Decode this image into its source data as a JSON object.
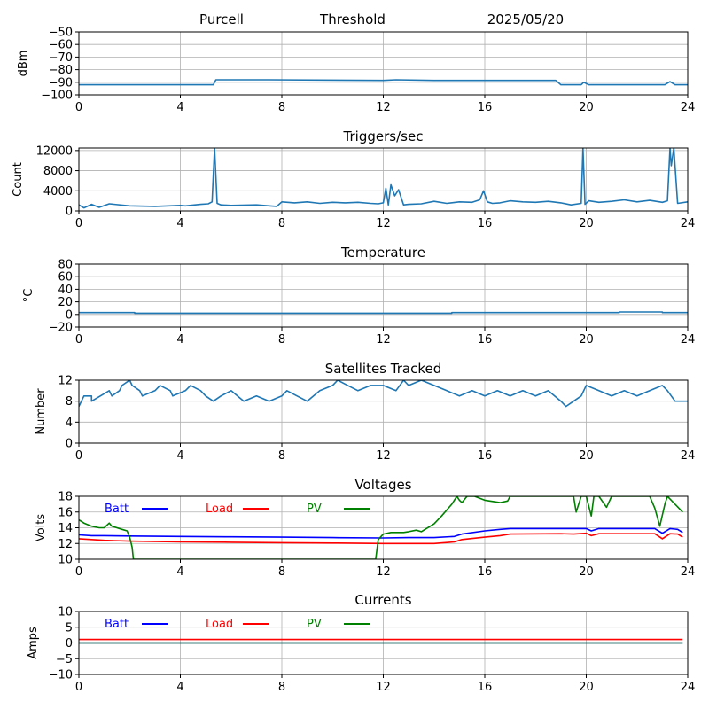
{
  "header": {
    "station": "Purcell",
    "mode": "Threshold",
    "date": "2025/05/20"
  },
  "colors": {
    "series": "#1f77b4",
    "batt": "#0000ff",
    "load": "#ff0000",
    "pv": "#008000",
    "grid": "#b0b0b0",
    "axis": "#000000"
  },
  "chart_data": [
    {
      "type": "line",
      "title": "",
      "xlabel": "",
      "ylabel": "dBm",
      "xlim": [
        0,
        24
      ],
      "ylim": [
        -100,
        -50
      ],
      "xticks": [
        0,
        4,
        8,
        12,
        16,
        20,
        24
      ],
      "yticks": [
        -100,
        -90,
        -80,
        -70,
        -60,
        -50
      ],
      "grid": true,
      "series": [
        {
          "color": "#1f77b4",
          "x": [
            0,
            5.3,
            5.4,
            7.5,
            12,
            12.5,
            14,
            16,
            18.8,
            19,
            19.8,
            19.9,
            20.1,
            23.1,
            23.3,
            23.5,
            24
          ],
          "y": [
            -92,
            -92,
            -88,
            -88,
            -88.5,
            -88,
            -88.5,
            -88.5,
            -88.5,
            -92,
            -92,
            -90,
            -92,
            -92,
            -89.5,
            -92,
            -92
          ]
        }
      ]
    },
    {
      "type": "line",
      "title": "Triggers/sec",
      "xlabel": "",
      "ylabel": "Count",
      "xlim": [
        0,
        24
      ],
      "ylim": [
        0,
        12500
      ],
      "xticks": [
        0,
        4,
        8,
        12,
        16,
        20,
        24
      ],
      "yticks": [
        0,
        4000,
        8000,
        12000
      ],
      "grid": true,
      "series": [
        {
          "color": "#1f77b4",
          "x": [
            0,
            0.2,
            0.5,
            0.8,
            1.2,
            2,
            3,
            4,
            4.2,
            4.8,
            5.1,
            5.25,
            5.35,
            5.45,
            5.6,
            6,
            7,
            7.5,
            7.8,
            8,
            8.5,
            9,
            9.5,
            10,
            10.5,
            11,
            11.5,
            11.8,
            12,
            12.1,
            12.2,
            12.3,
            12.45,
            12.6,
            12.8,
            13,
            13.5,
            14,
            14.5,
            15,
            15.5,
            15.8,
            15.95,
            16.1,
            16.3,
            16.6,
            17,
            17.5,
            18,
            18.5,
            19,
            19.4,
            19.8,
            19.87,
            19.95,
            20.1,
            20.5,
            21,
            21.5,
            22,
            22.5,
            23,
            23.2,
            23.3,
            23.35,
            23.45,
            23.6,
            24
          ],
          "y": [
            1200,
            600,
            1300,
            700,
            1400,
            1000,
            900,
            1100,
            1000,
            1300,
            1400,
            1800,
            12500,
            1500,
            1200,
            1100,
            1200,
            1000,
            900,
            1800,
            1600,
            1800,
            1500,
            1700,
            1600,
            1700,
            1500,
            1400,
            1600,
            4500,
            1200,
            5200,
            3000,
            4200,
            1200,
            1300,
            1400,
            1900,
            1500,
            1800,
            1700,
            2200,
            4000,
            1800,
            1500,
            1600,
            2000,
            1800,
            1700,
            1900,
            1600,
            1200,
            1500,
            12500,
            1300,
            2000,
            1700,
            1900,
            2200,
            1800,
            2100,
            1700,
            2000,
            12500,
            9000,
            12500,
            1500,
            1800
          ]
        }
      ]
    },
    {
      "type": "line",
      "title": "Temperature",
      "xlabel": "",
      "ylabel": "°C",
      "xlim": [
        0,
        24
      ],
      "ylim": [
        -20,
        80
      ],
      "xticks": [
        0,
        4,
        8,
        12,
        16,
        20,
        24
      ],
      "yticks": [
        -20,
        0,
        20,
        40,
        60,
        80
      ],
      "grid": true,
      "series": [
        {
          "color": "#1f77b4",
          "x": [
            0,
            2.2,
            2.2,
            14.7,
            14.7,
            21.3,
            21.3,
            23,
            23,
            24
          ],
          "y": [
            3,
            3,
            2,
            2,
            3,
            3,
            4,
            4,
            3,
            3
          ]
        }
      ]
    },
    {
      "type": "line",
      "title": "Satellites Tracked",
      "xlabel": "",
      "ylabel": "Number",
      "xlim": [
        0,
        24
      ],
      "ylim": [
        0,
        12
      ],
      "xticks": [
        0,
        4,
        8,
        12,
        16,
        20,
        24
      ],
      "yticks": [
        0,
        4,
        8,
        12
      ],
      "grid": true,
      "series": [
        {
          "color": "#1f77b4",
          "x": [
            0,
            0.1,
            0.2,
            0.5,
            0.5,
            1.2,
            1.3,
            1.6,
            1.7,
            2,
            2.1,
            2.4,
            2.5,
            3,
            3.2,
            3.6,
            3.7,
            4.2,
            4.4,
            4.8,
            5,
            5.3,
            5.6,
            6,
            6.5,
            7,
            7.5,
            8,
            8.2,
            8.6,
            9,
            9.5,
            10,
            10.2,
            10.6,
            11,
            11.5,
            12,
            12.5,
            12.8,
            13,
            13.5,
            14,
            14.5,
            15,
            15.5,
            16,
            16.5,
            17,
            17.5,
            18,
            18.5,
            19,
            19.2,
            19.5,
            19.8,
            20,
            20.5,
            21,
            21.5,
            22,
            22.5,
            23,
            23.2,
            23.5,
            24
          ],
          "y": [
            7,
            8,
            9,
            9,
            8,
            10,
            9,
            10,
            11,
            12,
            11,
            10,
            9,
            10,
            11,
            10,
            9,
            10,
            11,
            10,
            9,
            8,
            9,
            10,
            8,
            9,
            8,
            9,
            10,
            9,
            8,
            10,
            11,
            12,
            11,
            10,
            11,
            11,
            10,
            12,
            11,
            12,
            11,
            10,
            9,
            10,
            9,
            10,
            9,
            10,
            9,
            10,
            8,
            7,
            8,
            9,
            11,
            10,
            9,
            10,
            9,
            10,
            11,
            10,
            8,
            8
          ]
        }
      ]
    },
    {
      "type": "line",
      "title": "Voltages",
      "xlabel": "",
      "ylabel": "Volts",
      "xlim": [
        0,
        24
      ],
      "ylim": [
        10,
        18
      ],
      "xticks": [
        0,
        4,
        8,
        12,
        16,
        20,
        24
      ],
      "yticks": [
        10,
        12,
        14,
        16,
        18
      ],
      "grid": true,
      "legend": "top-left",
      "series": [
        {
          "name": "Batt",
          "color": "#0000ff",
          "x": [
            0,
            0.5,
            1,
            2,
            4,
            6,
            8,
            10,
            12,
            13,
            14,
            14.8,
            15.1,
            16,
            16.6,
            17,
            19,
            19.5,
            20,
            20.2,
            20.5,
            22,
            22.7,
            23,
            23.3,
            23.6,
            23.8
          ],
          "y": [
            13.1,
            13,
            13,
            12.95,
            12.9,
            12.85,
            12.8,
            12.75,
            12.7,
            12.75,
            12.75,
            12.9,
            13.2,
            13.6,
            13.8,
            13.9,
            13.9,
            13.9,
            13.9,
            13.6,
            13.9,
            13.9,
            13.9,
            13.3,
            13.9,
            13.8,
            13.4
          ]
        },
        {
          "name": "Load",
          "color": "#ff0000",
          "x": [
            0,
            0.5,
            1,
            2,
            4,
            6,
            8,
            10,
            12,
            13,
            14,
            14.8,
            15.1,
            16,
            16.6,
            17,
            19,
            19.5,
            20,
            20.2,
            20.5,
            22,
            22.7,
            23,
            23.3,
            23.6,
            23.8
          ],
          "y": [
            12.6,
            12.5,
            12.4,
            12.3,
            12.2,
            12.15,
            12.1,
            12.05,
            12,
            12,
            12,
            12.2,
            12.5,
            12.8,
            13,
            13.2,
            13.25,
            13.2,
            13.3,
            13,
            13.25,
            13.25,
            13.25,
            12.6,
            13.25,
            13.2,
            12.8
          ]
        },
        {
          "name": "PV",
          "color": "#008000",
          "x": [
            0,
            0.2,
            0.5,
            0.8,
            1,
            1.2,
            1.3,
            1.7,
            1.9,
            2,
            2.1,
            2.15,
            11.7,
            11.8,
            12,
            12.3,
            12.8,
            13,
            13.3,
            13.5,
            14,
            14.3,
            14.7,
            14.9,
            15,
            15.1,
            15.3,
            15.6,
            16,
            16.6,
            16.9,
            17,
            19.5,
            19.6,
            19.8,
            20,
            20.2,
            20.3,
            20.5,
            20.8,
            21,
            21.2,
            22.5,
            22.7,
            22.9,
            23.1,
            23.2,
            23.5,
            23.8
          ],
          "y": [
            15,
            14.6,
            14.2,
            14,
            14,
            14.6,
            14.2,
            13.8,
            13.6,
            12.8,
            11.5,
            10,
            10,
            12.5,
            13.2,
            13.4,
            13.4,
            13.5,
            13.7,
            13.5,
            14.5,
            15.5,
            17,
            18,
            17.5,
            17.2,
            18,
            18,
            17.5,
            17.2,
            17.4,
            18,
            18,
            16,
            18,
            18,
            15.5,
            18,
            18,
            16.6,
            18,
            18,
            18,
            16.5,
            14.2,
            17,
            18,
            17,
            16
          ]
        }
      ]
    },
    {
      "type": "line",
      "title": "Currents",
      "xlabel": "",
      "ylabel": "Amps",
      "xlim": [
        0,
        24
      ],
      "ylim": [
        -10,
        10
      ],
      "xticks": [
        0,
        4,
        8,
        12,
        16,
        20,
        24
      ],
      "yticks": [
        -10,
        -5,
        0,
        5,
        10
      ],
      "grid": true,
      "legend": "top-left",
      "series": [
        {
          "name": "Batt",
          "color": "#0000ff",
          "x": [
            0,
            23.8
          ],
          "y": [
            0,
            0
          ]
        },
        {
          "name": "Load",
          "color": "#ff0000",
          "x": [
            0,
            23.8
          ],
          "y": [
            1.1,
            1.1
          ]
        },
        {
          "name": "PV",
          "color": "#008000",
          "x": [
            0,
            23.8
          ],
          "y": [
            0,
            0
          ]
        }
      ]
    }
  ]
}
